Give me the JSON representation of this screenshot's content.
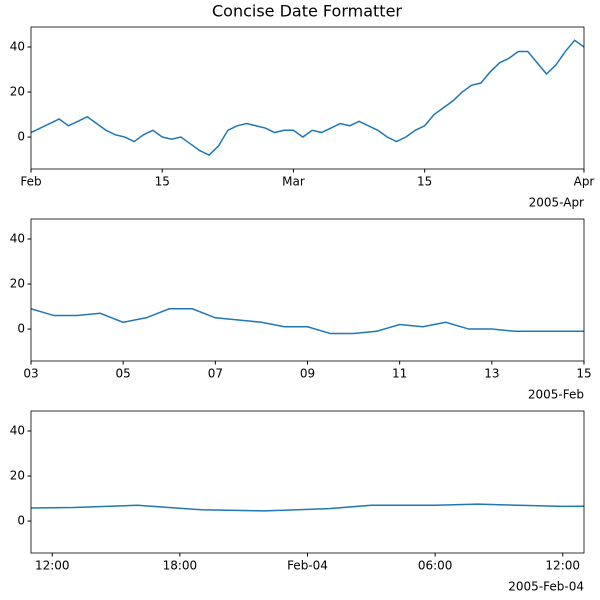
{
  "chart_data": [
    {
      "type": "line",
      "title": "Concise Date Formatter",
      "color": "#1f77b4",
      "x": [
        "2005-02-01",
        "2005-02-02",
        "2005-02-03",
        "2005-02-04",
        "2005-02-05",
        "2005-02-06",
        "2005-02-07",
        "2005-02-08",
        "2005-02-09",
        "2005-02-10",
        "2005-02-11",
        "2005-02-12",
        "2005-02-13",
        "2005-02-14",
        "2005-02-15",
        "2005-02-16",
        "2005-02-17",
        "2005-02-18",
        "2005-02-19",
        "2005-02-20",
        "2005-02-21",
        "2005-02-22",
        "2005-02-23",
        "2005-02-24",
        "2005-02-25",
        "2005-02-26",
        "2005-02-27",
        "2005-02-28",
        "2005-03-01",
        "2005-03-02",
        "2005-03-03",
        "2005-03-04",
        "2005-03-05",
        "2005-03-06",
        "2005-03-07",
        "2005-03-08",
        "2005-03-09",
        "2005-03-10",
        "2005-03-11",
        "2005-03-12",
        "2005-03-13",
        "2005-03-14",
        "2005-03-15",
        "2005-03-16",
        "2005-03-17",
        "2005-03-18",
        "2005-03-19",
        "2005-03-20",
        "2005-03-21",
        "2005-03-22",
        "2005-03-23",
        "2005-03-24",
        "2005-03-25",
        "2005-03-26",
        "2005-03-27",
        "2005-03-28",
        "2005-03-29",
        "2005-03-30",
        "2005-03-31",
        "2005-04-01"
      ],
      "values": [
        2,
        4,
        6,
        8,
        5,
        7,
        9,
        6,
        3,
        1,
        0,
        -2,
        1,
        3,
        0,
        -1,
        0,
        -3,
        -6,
        -8,
        -4,
        3,
        5,
        6,
        5,
        4,
        2,
        3,
        3,
        0,
        3,
        2,
        4,
        6,
        5,
        7,
        5,
        3,
        0,
        -2,
        0,
        3,
        5,
        10,
        13,
        16,
        20,
        23,
        24,
        29,
        33,
        35,
        38,
        38,
        33,
        28,
        32,
        38,
        43,
        40
      ],
      "xlim": [
        "2005-02-01",
        "2005-04-01"
      ],
      "xticks": [
        {
          "value": "2005-02-01",
          "label": "Feb"
        },
        {
          "value": "2005-02-15",
          "label": "15"
        },
        {
          "value": "2005-03-01",
          "label": "Mar"
        },
        {
          "value": "2005-03-15",
          "label": "15"
        },
        {
          "value": "2005-04-01",
          "label": "Apr"
        }
      ],
      "offset_label": "2005-Apr",
      "ylim": [
        -14.2,
        48.9
      ],
      "yticks": [
        0,
        20,
        40
      ]
    },
    {
      "type": "line",
      "color": "#1f77b4",
      "x": [
        "2005-02-03T00:00",
        "2005-02-03T12:00",
        "2005-02-04T00:00",
        "2005-02-04T12:00",
        "2005-02-05T00:00",
        "2005-02-05T12:00",
        "2005-02-06T00:00",
        "2005-02-06T12:00",
        "2005-02-07T00:00",
        "2005-02-07T12:00",
        "2005-02-08T00:00",
        "2005-02-08T12:00",
        "2005-02-09T00:00",
        "2005-02-09T12:00",
        "2005-02-10T00:00",
        "2005-02-10T12:00",
        "2005-02-11T00:00",
        "2005-02-11T12:00",
        "2005-02-12T00:00",
        "2005-02-12T12:00",
        "2005-02-13T00:00",
        "2005-02-13T12:00",
        "2005-02-14T00:00",
        "2005-02-14T12:00",
        "2005-02-15T00:00"
      ],
      "values": [
        9,
        6,
        6,
        7,
        3,
        5,
        9,
        9,
        5,
        4,
        3,
        1,
        1,
        -2,
        -2,
        -1,
        2,
        1,
        3,
        0,
        0,
        -1,
        -1,
        -1,
        -1
      ],
      "xlim": [
        "2005-02-03T00:00",
        "2005-02-15T00:00"
      ],
      "xticks": [
        {
          "value": "2005-02-03",
          "label": "03"
        },
        {
          "value": "2005-02-05",
          "label": "05"
        },
        {
          "value": "2005-02-07",
          "label": "07"
        },
        {
          "value": "2005-02-09",
          "label": "09"
        },
        {
          "value": "2005-02-11",
          "label": "11"
        },
        {
          "value": "2005-02-13",
          "label": "13"
        },
        {
          "value": "2005-02-15",
          "label": "15"
        }
      ],
      "offset_label": "2005-Feb",
      "ylim": [
        -14.2,
        48.9
      ],
      "yticks": [
        0,
        20,
        40
      ]
    },
    {
      "type": "line",
      "color": "#1f77b4",
      "x": [
        "2005-02-03T11:00",
        "2005-02-03T13:00",
        "2005-02-03T16:00",
        "2005-02-03T19:00",
        "2005-02-03T22:00",
        "2005-02-04T01:00",
        "2005-02-04T03:00",
        "2005-02-04T06:00",
        "2005-02-04T08:00",
        "2005-02-04T12:00",
        "2005-02-04T13:00"
      ],
      "values": [
        5.8,
        6,
        7,
        5,
        4.5,
        5.5,
        7,
        7,
        7.5,
        6.5,
        6.6
      ],
      "xlim": [
        "2005-02-03T11:00",
        "2005-02-04T13:00"
      ],
      "xticks": [
        {
          "value": "2005-02-03T12:00",
          "label": "12:00"
        },
        {
          "value": "2005-02-03T18:00",
          "label": "18:00"
        },
        {
          "value": "2005-02-04T00:00",
          "label": "Feb-04"
        },
        {
          "value": "2005-02-04T06:00",
          "label": "06:00"
        },
        {
          "value": "2005-02-04T12:00",
          "label": "12:00"
        }
      ],
      "offset_label": "2005-Feb-04",
      "ylim": [
        -14.2,
        48.9
      ],
      "yticks": [
        0,
        20,
        40
      ]
    }
  ]
}
